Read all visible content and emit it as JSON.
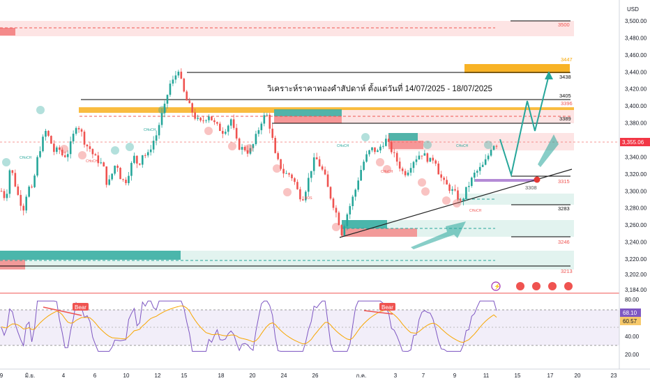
{
  "currency": "USD",
  "title": "วิเคราะห์ราคาทองคำสัปดาห์ ตั้งแต่วันที่ 14/07/2025 - 18/07/2025",
  "price_axis": {
    "ticks": [
      "3,500.00",
      "3,480.00",
      "3,460.00",
      "3,440.00",
      "3,420.00",
      "3,400.00",
      "3,380.00",
      "3,360.00",
      "3,340.00",
      "3,320.00",
      "3,300.00",
      "3,280.00",
      "3,260.00",
      "3,240.00",
      "3,220.00",
      "3,202.00",
      "3,184.00"
    ],
    "current_price": "3,355.06"
  },
  "rsi_axis": {
    "ticks": [
      "80.00",
      "40.00",
      "20.00"
    ],
    "rsi_value": "68.10",
    "ma_value": "60.57"
  },
  "date_axis": [
    "9",
    "มิ.ย.",
    "4",
    "6",
    "10",
    "12",
    "15",
    "18",
    "20",
    "24",
    "26",
    "ก.ค.",
    "3",
    "7",
    "9",
    "11",
    "15",
    "17",
    "20",
    "23"
  ],
  "level_labels": {
    "l3500": "3500",
    "l3447": "3447",
    "l3438": "3438",
    "l3405": "3405",
    "l3396": "3396",
    "l3389": "3389",
    "l3315": "3315",
    "l3308": "3308",
    "l3283": "3283",
    "l3246": "3246",
    "l3213": "3213"
  },
  "annotations": {
    "bear1": "Bear",
    "bear2": "Bear",
    "choch": "CHoCH",
    "bos": "BOS"
  },
  "colors": {
    "bull": "#26a69a",
    "bear": "#ef5350",
    "rsi": "#7e57c2",
    "rsi_ma": "#f7a600",
    "orange": "#f7a600",
    "price_tag": "#f23645"
  },
  "chart_data": {
    "type": "candlestick",
    "title": "วิเคราะห์ราคาทองคำสัปดาห์ ตั้งแต่วันที่ 14/07/2025 - 18/07/2025",
    "ylabel": "USD",
    "ylim": [
      3184,
      3510
    ],
    "close_path": [
      3300,
      3290,
      3330,
      3310,
      3290,
      3280,
      3305,
      3300,
      3335,
      3355,
      3370,
      3360,
      3345,
      3350,
      3340,
      3345,
      3360,
      3380,
      3370,
      3355,
      3350,
      3340,
      3335,
      3330,
      3305,
      3320,
      3335,
      3315,
      3310,
      3325,
      3340,
      3330,
      3345,
      3340,
      3355,
      3365,
      3385,
      3400,
      3425,
      3430,
      3445,
      3420,
      3405,
      3395,
      3385,
      3380,
      3385,
      3390,
      3380,
      3375,
      3370,
      3375,
      3385,
      3360,
      3350,
      3350,
      3345,
      3355,
      3370,
      3385,
      3390,
      3370,
      3340,
      3330,
      3320,
      3320,
      3315,
      3300,
      3290,
      3305,
      3325,
      3340,
      3330,
      3320,
      3300,
      3285,
      3270,
      3250,
      3270,
      3285,
      3300,
      3320,
      3335,
      3345,
      3350,
      3345,
      3355,
      3360,
      3350,
      3340,
      3330,
      3320,
      3325,
      3335,
      3340,
      3345,
      3340,
      3335,
      3340,
      3320,
      3310,
      3305,
      3300,
      3295,
      3285,
      3300,
      3310,
      3320,
      3325,
      3330,
      3340,
      3355,
      3355
    ],
    "projection": [
      {
        "y": 3355
      },
      {
        "y": 3320
      },
      {
        "y": 3400
      },
      {
        "y": 3378
      },
      {
        "y": 3440
      }
    ],
    "levels": [
      3500,
      3447,
      3438,
      3405,
      3396,
      3389,
      3315,
      3308,
      3283,
      3246,
      3213
    ],
    "rsi": {
      "last": 68.1,
      "ma_last": 60.57,
      "ylim": [
        10,
        90
      ]
    }
  }
}
